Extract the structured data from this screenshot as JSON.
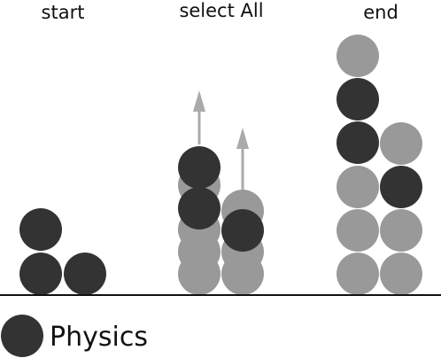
{
  "columns": [
    {
      "label": "start"
    },
    {
      "label": "select All"
    },
    {
      "label": "end"
    }
  ],
  "legend": {
    "label": "Physics"
  },
  "colors": {
    "physics": "#333333",
    "static": "#999999",
    "arrow": "#aaaaaa",
    "ground": "#111111"
  }
}
